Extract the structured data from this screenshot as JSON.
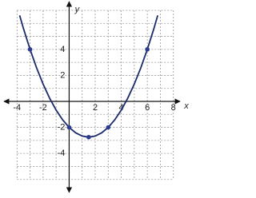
{
  "chart_data": {
    "type": "line",
    "x_label": "x",
    "y_label": "y",
    "xlim": [
      -5,
      9
    ],
    "ylim": [
      -7,
      7
    ],
    "xticks": [
      -4,
      -2,
      2,
      4,
      6,
      8
    ],
    "yticks": [
      -4,
      -2,
      2,
      4
    ],
    "grid": true,
    "curve": {
      "color": "#1c2a6b",
      "x": [
        -3.8,
        -3.5,
        -3,
        -2.5,
        -2,
        -1.5,
        -1,
        -0.5,
        0,
        0.5,
        1,
        1.5,
        2,
        2.5,
        3,
        3.5,
        4,
        4.5,
        5,
        5.5,
        6,
        6.5,
        6.8
      ],
      "values": [
        6.613,
        5.583,
        4,
        2.583,
        1.333,
        0.25,
        -0.667,
        -1.417,
        -2,
        -2.417,
        -2.667,
        -2.75,
        -2.667,
        -2.417,
        -2,
        -1.417,
        -0.667,
        0.25,
        1.333,
        2.583,
        4,
        5.583,
        6.613
      ]
    },
    "points": {
      "color": "#2b3c8f",
      "x": [
        -3,
        0,
        1.5,
        3,
        6
      ],
      "values": [
        4,
        -2,
        -2.75,
        -2,
        4
      ]
    }
  }
}
